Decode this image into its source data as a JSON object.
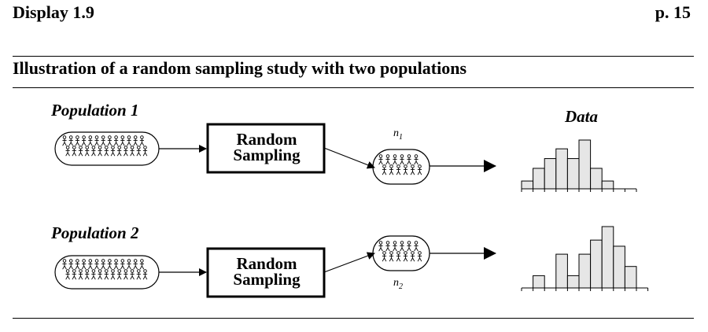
{
  "header": {
    "display": "Display 1.9",
    "page": "p. 15"
  },
  "subtitle": "Illustration of a random sampling study with two populations",
  "rows": [
    {
      "population_label": "Population 1",
      "box_line1": "Random",
      "box_line2": "Sampling",
      "sample_label_main": "n",
      "sample_label_sub": "1",
      "histogram": [
        0.16,
        0.42,
        0.62,
        0.82,
        0.62,
        1.0,
        0.42,
        0.16,
        0,
        0
      ]
    },
    {
      "population_label": "Population 2",
      "box_line1": "Random",
      "box_line2": "Sampling",
      "sample_label_main": "n",
      "sample_label_sub": "2",
      "histogram": [
        0,
        0.2,
        0,
        0.55,
        0.2,
        0.55,
        0.78,
        1.0,
        0.68,
        0.35,
        0
      ]
    }
  ],
  "data_label": "Data",
  "colors": {
    "bar_fill": "#e6e6e6",
    "stroke": "#000000"
  },
  "icons": [
    "stick-figure-icon",
    "arrow-right-icon"
  ]
}
